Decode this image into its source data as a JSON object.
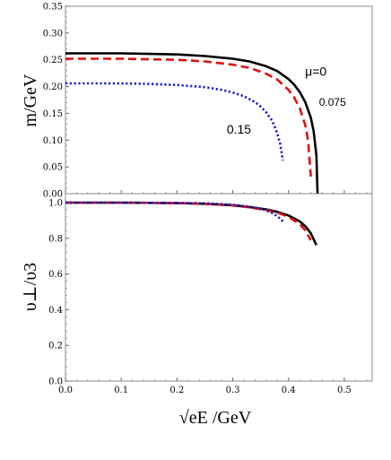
{
  "chart_data": [
    {
      "type": "line",
      "panel": "top",
      "ylabel": "m/GeV",
      "xlim": [
        0,
        0.55
      ],
      "ylim": [
        0,
        0.35
      ],
      "yticks": [
        "0.00",
        "0.05",
        "0.10",
        "0.15",
        "0.20",
        "0.25",
        "0.30",
        "0.35"
      ],
      "grid": false,
      "annotations": [
        {
          "text": "μ=0",
          "series": 0
        },
        {
          "text": "0.075",
          "series": 1
        },
        {
          "text": "0.15",
          "series": 2
        }
      ],
      "series": [
        {
          "color": "#000000",
          "style": "solid",
          "x": [
            0,
            0.05,
            0.1,
            0.15,
            0.2,
            0.25,
            0.3,
            0.33,
            0.36,
            0.38,
            0.4,
            0.41,
            0.42,
            0.43,
            0.44,
            0.445,
            0.45,
            0.452
          ],
          "y": [
            0.262,
            0.262,
            0.262,
            0.261,
            0.26,
            0.257,
            0.252,
            0.247,
            0.238,
            0.229,
            0.214,
            0.204,
            0.19,
            0.171,
            0.142,
            0.117,
            0.072,
            0.0
          ]
        },
        {
          "color": "#dd1111",
          "style": "dashed",
          "x": [
            0,
            0.05,
            0.1,
            0.15,
            0.2,
            0.25,
            0.3,
            0.33,
            0.36,
            0.38,
            0.4,
            0.41,
            0.42,
            0.43,
            0.435,
            0.44
          ],
          "y": [
            0.252,
            0.252,
            0.252,
            0.251,
            0.25,
            0.247,
            0.241,
            0.235,
            0.224,
            0.213,
            0.194,
            0.18,
            0.16,
            0.128,
            0.1,
            0.032
          ]
        },
        {
          "color": "#1a1acc",
          "style": "dotted",
          "x": [
            0,
            0.05,
            0.1,
            0.15,
            0.2,
            0.25,
            0.28,
            0.3,
            0.32,
            0.34,
            0.35,
            0.36,
            0.37,
            0.375,
            0.38,
            0.385,
            0.39
          ],
          "y": [
            0.206,
            0.206,
            0.206,
            0.205,
            0.203,
            0.199,
            0.194,
            0.189,
            0.182,
            0.171,
            0.163,
            0.152,
            0.137,
            0.126,
            0.112,
            0.093,
            0.062
          ]
        }
      ]
    },
    {
      "type": "line",
      "panel": "bottom",
      "ylabel": "υ⊥/υ3",
      "xlabel": "√eE /GeV",
      "xlim": [
        0,
        0.55
      ],
      "ylim": [
        0,
        1.05
      ],
      "xticks": [
        "0.0",
        "0.1",
        "0.2",
        "0.3",
        "0.4",
        "0.5"
      ],
      "yticks": [
        "0.0",
        "0.2",
        "0.4",
        "0.6",
        "0.8",
        "1.0"
      ],
      "grid": false,
      "series": [
        {
          "color": "#000000",
          "style": "solid",
          "x": [
            0,
            0.1,
            0.2,
            0.25,
            0.3,
            0.33,
            0.36,
            0.38,
            0.4,
            0.42,
            0.43,
            0.44,
            0.45
          ],
          "y": [
            1.0,
            1.0,
            0.997,
            0.993,
            0.985,
            0.975,
            0.962,
            0.948,
            0.928,
            0.895,
            0.868,
            0.828,
            0.762
          ]
        },
        {
          "color": "#dd1111",
          "style": "dashed",
          "x": [
            0,
            0.1,
            0.2,
            0.25,
            0.3,
            0.33,
            0.36,
            0.38,
            0.4,
            0.42,
            0.43,
            0.44
          ],
          "y": [
            1.0,
            1.0,
            0.997,
            0.993,
            0.984,
            0.973,
            0.958,
            0.944,
            0.92,
            0.88,
            0.845,
            0.79
          ]
        },
        {
          "color": "#1a1acc",
          "style": "dotted",
          "x": [
            0,
            0.1,
            0.2,
            0.25,
            0.3,
            0.33,
            0.35,
            0.36,
            0.37,
            0.38,
            0.39
          ],
          "y": [
            1.0,
            1.0,
            0.998,
            0.996,
            0.988,
            0.977,
            0.966,
            0.956,
            0.943,
            0.924,
            0.895
          ]
        }
      ]
    }
  ]
}
